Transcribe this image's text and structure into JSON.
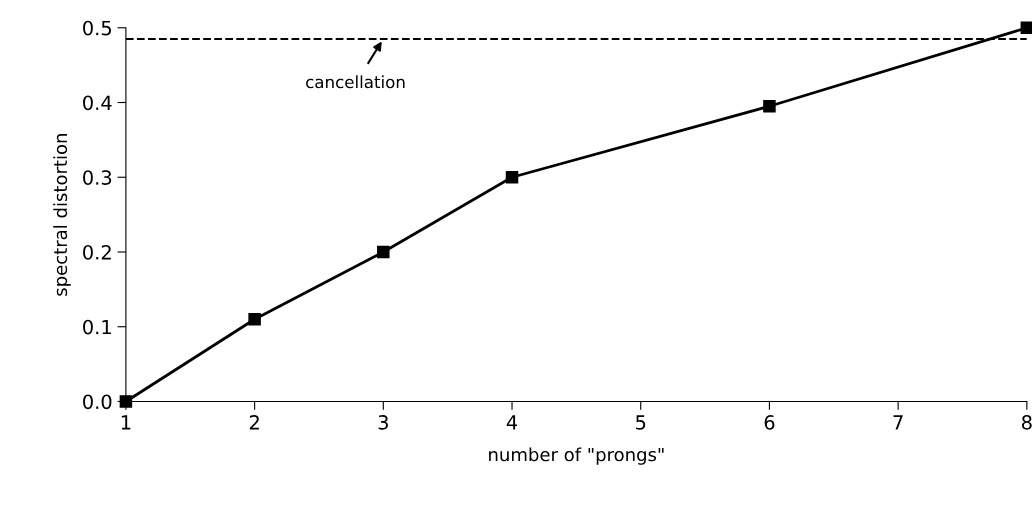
{
  "chart_data": {
    "type": "line",
    "xlabel": "number of \"prongs\"",
    "ylabel": "spectral distortion",
    "x": [
      1,
      2,
      3,
      4,
      6,
      8
    ],
    "series": [
      {
        "color": "#000000",
        "values": [
          0.0,
          0.11,
          0.2,
          0.3,
          0.395,
          0.5
        ]
      }
    ],
    "xlim": [
      1,
      8
    ],
    "xticks": [
      1,
      2,
      3,
      4,
      5,
      6,
      7,
      8
    ],
    "ylim": [
      0,
      0.5
    ],
    "yticks": [
      {
        "value": 0,
        "label": "0.0"
      },
      0.1,
      0.2,
      0.3,
      0.4,
      0.5
    ],
    "ref_lines": [
      {
        "axis": "y",
        "value": 0.485,
        "color": "#000000",
        "line_style": "dashed"
      }
    ],
    "annotations": [
      {
        "text": "cancellation",
        "x": 3.0,
        "y": 0.485
      }
    ],
    "marker": "square",
    "line_style": "solid",
    "grid": false,
    "legend": false
  }
}
